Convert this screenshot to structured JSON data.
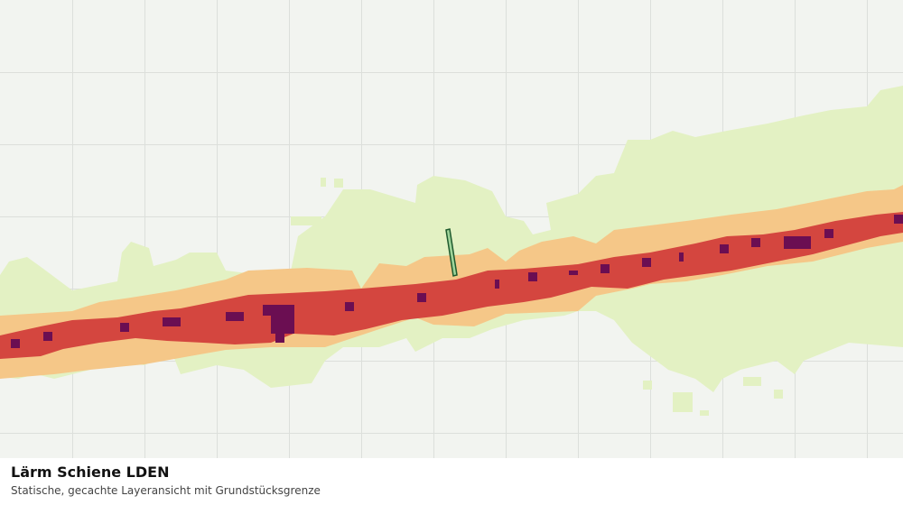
{
  "caption": {
    "title": "Lärm Schiene LDEN",
    "subtitle": "Statische, gecachte Layeransicht mit Grundstücksgrenze"
  }
}
